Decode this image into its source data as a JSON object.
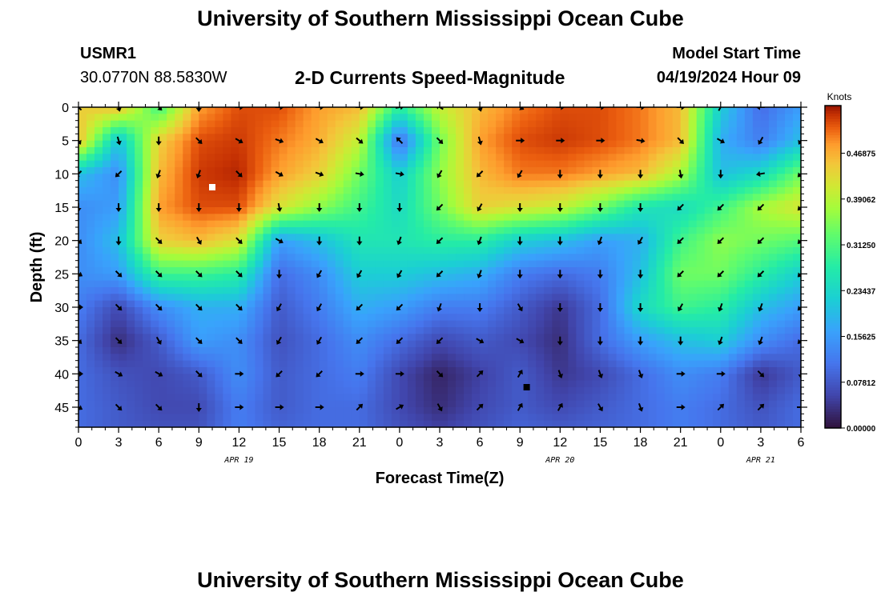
{
  "header": {
    "title": "University of Southern Mississippi Ocean Cube",
    "station_name": "USMR1",
    "station_coords": "30.0770N  88.5830W",
    "plot_title": "2-D Currents Speed-Magnitude",
    "model_start_label": "Model Start Time",
    "model_start_value": "04/19/2024 Hour 09"
  },
  "footer": {
    "title": "University of Southern Mississippi Ocean Cube"
  },
  "chart_data": {
    "type": "heatmap",
    "title": "2-D Currents Speed-Magnitude",
    "xlabel": "Forecast Time(Z)",
    "ylabel": "Depth (ft)",
    "x_hours_range": [
      0,
      54
    ],
    "ylim": [
      0,
      48
    ],
    "y_inverted": true,
    "x_tick_labels": [
      "0",
      "3",
      "6",
      "9",
      "12",
      "15",
      "18",
      "21",
      "0",
      "3",
      "6",
      "9",
      "12",
      "15",
      "18",
      "21",
      "0",
      "3",
      "6"
    ],
    "y_tick_labels": [
      "0",
      "5",
      "10",
      "15",
      "20",
      "25",
      "30",
      "35",
      "40",
      "45"
    ],
    "y_tick_values": [
      0,
      5,
      10,
      15,
      20,
      25,
      30,
      35,
      40,
      45
    ],
    "date_labels": [
      {
        "text": "APR 19",
        "hour": 12
      },
      {
        "text": "APR 20",
        "hour": 36
      },
      {
        "text": "APR 21",
        "hour": 51
      }
    ],
    "colorbar": {
      "unit": "Knots",
      "tick_labels": [
        "0.46875",
        "0.39062",
        "0.31250",
        "0.23437",
        "0.15625",
        "0.07812",
        "0.00000"
      ],
      "tick_values": [
        0.46875,
        0.390625,
        0.3125,
        0.234375,
        0.15625,
        0.078125,
        0.0
      ],
      "range": [
        0,
        0.55
      ]
    },
    "speed_grid_hours": [
      0,
      3,
      6,
      9,
      12,
      15,
      18,
      21,
      24,
      27,
      30,
      33,
      36,
      39,
      42,
      45,
      48,
      51,
      54
    ],
    "speed_grid_depths": [
      0,
      5,
      10,
      15,
      20,
      25,
      30,
      35,
      40,
      45,
      48
    ],
    "speed_knots": [
      [
        0.44,
        0.46,
        0.3,
        0.48,
        0.52,
        0.52,
        0.48,
        0.46,
        0.28,
        0.4,
        0.46,
        0.5,
        0.52,
        0.52,
        0.5,
        0.46,
        0.22,
        0.1,
        0.16
      ],
      [
        0.46,
        0.2,
        0.44,
        0.52,
        0.53,
        0.5,
        0.47,
        0.4,
        0.1,
        0.34,
        0.48,
        0.52,
        0.53,
        0.52,
        0.5,
        0.46,
        0.18,
        0.12,
        0.2
      ],
      [
        0.2,
        0.14,
        0.46,
        0.53,
        0.54,
        0.48,
        0.44,
        0.34,
        0.22,
        0.36,
        0.46,
        0.5,
        0.5,
        0.48,
        0.46,
        0.38,
        0.2,
        0.24,
        0.34
      ],
      [
        0.14,
        0.16,
        0.48,
        0.52,
        0.52,
        0.42,
        0.36,
        0.3,
        0.24,
        0.34,
        0.44,
        0.42,
        0.4,
        0.34,
        0.26,
        0.24,
        0.3,
        0.38,
        0.42
      ],
      [
        0.14,
        0.2,
        0.44,
        0.46,
        0.42,
        0.16,
        0.2,
        0.26,
        0.26,
        0.28,
        0.28,
        0.22,
        0.2,
        0.16,
        0.18,
        0.3,
        0.36,
        0.34,
        0.32
      ],
      [
        0.14,
        0.16,
        0.3,
        0.3,
        0.28,
        0.1,
        0.14,
        0.22,
        0.22,
        0.2,
        0.18,
        0.12,
        0.1,
        0.12,
        0.2,
        0.34,
        0.34,
        0.28,
        0.22
      ],
      [
        0.12,
        0.06,
        0.14,
        0.18,
        0.18,
        0.08,
        0.12,
        0.18,
        0.16,
        0.12,
        0.12,
        0.08,
        0.04,
        0.1,
        0.24,
        0.3,
        0.28,
        0.2,
        0.16
      ],
      [
        0.1,
        0.03,
        0.08,
        0.16,
        0.14,
        0.07,
        0.1,
        0.14,
        0.1,
        0.06,
        0.08,
        0.06,
        0.03,
        0.1,
        0.16,
        0.2,
        0.22,
        0.14,
        0.1
      ],
      [
        0.1,
        0.07,
        0.06,
        0.08,
        0.14,
        0.08,
        0.1,
        0.12,
        0.06,
        0.02,
        0.05,
        0.08,
        0.04,
        0.06,
        0.1,
        0.14,
        0.12,
        0.04,
        0.08
      ],
      [
        0.1,
        0.08,
        0.06,
        0.06,
        0.12,
        0.08,
        0.1,
        0.1,
        0.06,
        0.03,
        0.06,
        0.08,
        0.06,
        0.08,
        0.1,
        0.12,
        0.1,
        0.07,
        0.1
      ],
      [
        0.1,
        0.08,
        0.07,
        0.07,
        0.12,
        0.09,
        0.1,
        0.1,
        0.07,
        0.05,
        0.07,
        0.09,
        0.08,
        0.09,
        0.1,
        0.12,
        0.1,
        0.08,
        0.1
      ]
    ],
    "arrow_hours": [
      0,
      3,
      6,
      9,
      12,
      15,
      18,
      21,
      24,
      27,
      30,
      33,
      36,
      39,
      42,
      45,
      48,
      51,
      54
    ],
    "arrow_depths": [
      0,
      5,
      10,
      15,
      20,
      25,
      30,
      35,
      40,
      45
    ],
    "arrow_dirs_deg": [
      [
        315,
        165,
        135,
        180,
        90,
        90,
        90,
        90,
        80,
        300,
        165,
        120,
        90,
        90,
        90,
        90,
        30,
        270,
        120
      ],
      [
        150,
        165,
        180,
        135,
        120,
        110,
        120,
        130,
        315,
        135,
        165,
        90,
        90,
        90,
        100,
        135,
        120,
        210,
        210
      ],
      [
        225,
        225,
        200,
        200,
        135,
        120,
        110,
        100,
        100,
        210,
        225,
        210,
        180,
        180,
        180,
        170,
        180,
        260,
        225
      ],
      [
        180,
        180,
        180,
        180,
        180,
        170,
        180,
        180,
        180,
        225,
        210,
        180,
        180,
        180,
        180,
        225,
        225,
        225,
        225
      ],
      [
        135,
        180,
        135,
        150,
        135,
        120,
        180,
        180,
        200,
        225,
        200,
        180,
        180,
        200,
        210,
        225,
        225,
        225,
        225
      ],
      [
        120,
        135,
        135,
        135,
        135,
        180,
        210,
        210,
        210,
        225,
        200,
        180,
        180,
        180,
        180,
        225,
        225,
        225,
        225
      ],
      [
        90,
        135,
        135,
        135,
        135,
        210,
        210,
        225,
        225,
        200,
        180,
        150,
        180,
        180,
        180,
        210,
        200,
        200,
        225
      ],
      [
        135,
        135,
        150,
        135,
        135,
        210,
        210,
        225,
        225,
        225,
        120,
        120,
        180,
        180,
        180,
        180,
        200,
        200,
        225
      ],
      [
        90,
        120,
        120,
        135,
        90,
        225,
        225,
        90,
        90,
        135,
        45,
        30,
        160,
        160,
        160,
        90,
        90,
        135,
        180
      ],
      [
        120,
        135,
        135,
        180,
        90,
        90,
        90,
        45,
        60,
        150,
        45,
        30,
        30,
        150,
        160,
        90,
        45,
        45,
        90
      ]
    ],
    "markers": [
      {
        "hour": 10,
        "depth": 12,
        "color": "#ffffff"
      },
      {
        "hour": 33.5,
        "depth": 42,
        "color": "#000000"
      }
    ]
  }
}
